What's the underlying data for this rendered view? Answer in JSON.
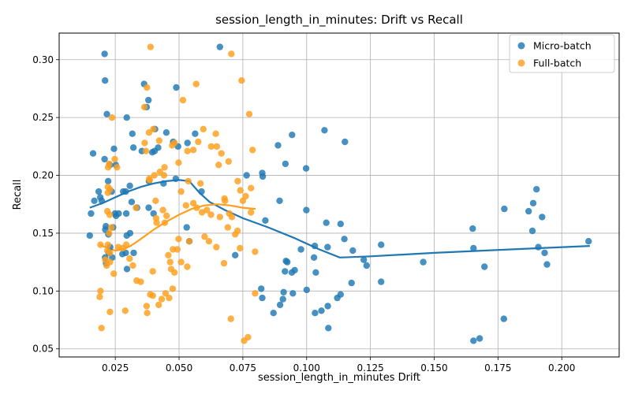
{
  "chart_data": {
    "type": "scatter",
    "title": "session_length_in_minutes: Drift vs Recall",
    "xlabel": "session_length_in_minutes Drift",
    "ylabel": "Recall",
    "xlim": [
      0.003,
      0.2225
    ],
    "ylim": [
      0.043,
      0.323
    ],
    "xticks": [
      0.025,
      0.05,
      0.075,
      0.1,
      0.125,
      0.15,
      0.175,
      0.2
    ],
    "xtick_labels": [
      "0.025",
      "0.050",
      "0.075",
      "0.100",
      "0.125",
      "0.150",
      "0.175",
      "0.200"
    ],
    "yticks": [
      0.05,
      0.1,
      0.15,
      0.2,
      0.25,
      0.3
    ],
    "ytick_labels": [
      "0.05",
      "0.10",
      "0.15",
      "0.20",
      "0.25",
      "0.30"
    ],
    "grid": true,
    "legend_position": "upper right",
    "series": [
      {
        "name": "Micro-batch",
        "color": "#1f77b4",
        "points": [
          [
            0.0208,
            0.305
          ],
          [
            0.021,
            0.282
          ],
          [
            0.0217,
            0.253
          ],
          [
            0.0295,
            0.25
          ],
          [
            0.0363,
            0.279
          ],
          [
            0.038,
            0.265
          ],
          [
            0.0373,
            0.259
          ],
          [
            0.0489,
            0.276
          ],
          [
            0.066,
            0.311
          ],
          [
            0.045,
            0.237
          ],
          [
            0.0563,
            0.236
          ],
          [
            0.0317,
            0.236
          ],
          [
            0.0245,
            0.223
          ],
          [
            0.0321,
            0.224
          ],
          [
            0.0163,
            0.219
          ],
          [
            0.0208,
            0.214
          ],
          [
            0.0252,
            0.209
          ],
          [
            0.0229,
            0.209
          ],
          [
            0.0354,
            0.221
          ],
          [
            0.0404,
            0.221
          ],
          [
            0.0418,
            0.224
          ],
          [
            0.0477,
            0.229
          ],
          [
            0.0496,
            0.225
          ],
          [
            0.0533,
            0.228
          ],
          [
            0.0406,
            0.24
          ],
          [
            0.0395,
            0.22
          ],
          [
            0.0222,
            0.195
          ],
          [
            0.0185,
            0.186
          ],
          [
            0.0236,
            0.186
          ],
          [
            0.0291,
            0.186
          ],
          [
            0.0281,
            0.186
          ],
          [
            0.0307,
            0.191
          ],
          [
            0.0191,
            0.181
          ],
          [
            0.0168,
            0.178
          ],
          [
            0.0197,
            0.178
          ],
          [
            0.0382,
            0.195
          ],
          [
            0.0439,
            0.193
          ],
          [
            0.0487,
            0.197
          ],
          [
            0.0249,
            0.167
          ],
          [
            0.0263,
            0.167
          ],
          [
            0.0293,
            0.167
          ],
          [
            0.0314,
            0.177
          ],
          [
            0.0335,
            0.172
          ],
          [
            0.0381,
            0.172
          ],
          [
            0.04,
            0.167
          ],
          [
            0.0213,
            0.156
          ],
          [
            0.0211,
            0.153
          ],
          [
            0.0241,
            0.155
          ],
          [
            0.0253,
            0.165
          ],
          [
            0.023,
            0.138
          ],
          [
            0.0224,
            0.133
          ],
          [
            0.021,
            0.129
          ],
          [
            0.0214,
            0.124
          ],
          [
            0.0278,
            0.132
          ],
          [
            0.0291,
            0.133
          ],
          [
            0.0295,
            0.148
          ],
          [
            0.0308,
            0.15
          ],
          [
            0.0322,
            0.133
          ],
          [
            0.0296,
            0.119
          ],
          [
            0.0238,
            0.129
          ],
          [
            0.0223,
            0.149
          ],
          [
            0.015,
            0.148
          ],
          [
            0.0155,
            0.167
          ],
          [
            0.053,
            0.155
          ],
          [
            0.054,
            0.143
          ],
          [
            0.0588,
            0.186
          ],
          [
            0.072,
            0.131
          ],
          [
            0.0765,
            0.2
          ],
          [
            0.0826,
            0.202
          ],
          [
            0.0828,
            0.199
          ],
          [
            0.0838,
            0.161
          ],
          [
            0.0888,
            0.226
          ],
          [
            0.0917,
            0.21
          ],
          [
            0.0943,
            0.235
          ],
          [
            0.0894,
            0.178
          ],
          [
            0.0998,
            0.206
          ],
          [
            0.0999,
            0.17
          ],
          [
            0.0919,
            0.126
          ],
          [
            0.0924,
            0.125
          ],
          [
            0.0915,
            0.117
          ],
          [
            0.0953,
            0.118
          ],
          [
            0.0942,
            0.116
          ],
          [
            0.0946,
            0.098
          ],
          [
            0.0978,
            0.136
          ],
          [
            0.1032,
            0.139
          ],
          [
            0.1029,
            0.129
          ],
          [
            0.1036,
            0.116
          ],
          [
            0.1,
            0.101
          ],
          [
            0.091,
            0.099
          ],
          [
            0.0907,
            0.093
          ],
          [
            0.0896,
            0.088
          ],
          [
            0.087,
            0.081
          ],
          [
            0.0822,
            0.102
          ],
          [
            0.0826,
            0.094
          ],
          [
            0.107,
            0.239
          ],
          [
            0.1077,
            0.159
          ],
          [
            0.1082,
            0.138
          ],
          [
            0.1133,
            0.158
          ],
          [
            0.115,
            0.229
          ],
          [
            0.1148,
            0.145
          ],
          [
            0.1181,
            0.135
          ],
          [
            0.1033,
            0.081
          ],
          [
            0.1058,
            0.083
          ],
          [
            0.1083,
            0.087
          ],
          [
            0.1085,
            0.068
          ],
          [
            0.112,
            0.094
          ],
          [
            0.1133,
            0.097
          ],
          [
            0.1176,
            0.107
          ],
          [
            0.1224,
            0.127
          ],
          [
            0.1235,
            0.122
          ],
          [
            0.1292,
            0.14
          ],
          [
            0.1292,
            0.108
          ],
          [
            0.1457,
            0.125
          ],
          [
            0.1651,
            0.154
          ],
          [
            0.1654,
            0.137
          ],
          [
            0.1654,
            0.057
          ],
          [
            0.1678,
            0.059
          ],
          [
            0.1697,
            0.121
          ],
          [
            0.1775,
            0.171
          ],
          [
            0.1773,
            0.076
          ],
          [
            0.187,
            0.169
          ],
          [
            0.1885,
            0.152
          ],
          [
            0.1888,
            0.176
          ],
          [
            0.1901,
            0.188
          ],
          [
            0.1908,
            0.138
          ],
          [
            0.1923,
            0.164
          ],
          [
            0.1933,
            0.133
          ],
          [
            0.1942,
            0.123
          ],
          [
            0.2105,
            0.143
          ]
        ],
        "trend": [
          [
            0.015,
            0.172
          ],
          [
            0.02,
            0.176
          ],
          [
            0.025,
            0.181
          ],
          [
            0.03,
            0.186
          ],
          [
            0.035,
            0.19
          ],
          [
            0.04,
            0.193
          ],
          [
            0.045,
            0.195
          ],
          [
            0.05,
            0.196
          ],
          [
            0.054,
            0.195
          ],
          [
            0.058,
            0.185
          ],
          [
            0.062,
            0.177
          ],
          [
            0.068,
            0.17
          ],
          [
            0.075,
            0.163
          ],
          [
            0.085,
            0.155
          ],
          [
            0.095,
            0.146
          ],
          [
            0.105,
            0.136
          ],
          [
            0.113,
            0.129
          ],
          [
            0.125,
            0.13
          ],
          [
            0.15,
            0.133
          ],
          [
            0.18,
            0.136
          ],
          [
            0.211,
            0.139
          ]
        ]
      },
      {
        "name": "Full-batch",
        "color": "#ff9f1c",
        "points": [
          [
            0.0388,
            0.311
          ],
          [
            0.0705,
            0.305
          ],
          [
            0.0374,
            0.276
          ],
          [
            0.0567,
            0.279
          ],
          [
            0.0745,
            0.282
          ],
          [
            0.0775,
            0.253
          ],
          [
            0.0364,
            0.259
          ],
          [
            0.0237,
            0.25
          ],
          [
            0.0515,
            0.265
          ],
          [
            0.0382,
            0.237
          ],
          [
            0.0399,
            0.24
          ],
          [
            0.0595,
            0.24
          ],
          [
            0.0644,
            0.236
          ],
          [
            0.0575,
            0.229
          ],
          [
            0.0422,
            0.23
          ],
          [
            0.0365,
            0.228
          ],
          [
            0.0482,
            0.228
          ],
          [
            0.0473,
            0.226
          ],
          [
            0.037,
            0.221
          ],
          [
            0.0533,
            0.221
          ],
          [
            0.0556,
            0.222
          ],
          [
            0.0626,
            0.225
          ],
          [
            0.0648,
            0.225
          ],
          [
            0.0666,
            0.219
          ],
          [
            0.0788,
            0.222
          ],
          [
            0.0248,
            0.214
          ],
          [
            0.0226,
            0.21
          ],
          [
            0.0222,
            0.207
          ],
          [
            0.0257,
            0.207
          ],
          [
            0.0443,
            0.207
          ],
          [
            0.0403,
            0.2
          ],
          [
            0.0425,
            0.203
          ],
          [
            0.0441,
            0.2
          ],
          [
            0.0498,
            0.211
          ],
          [
            0.0655,
            0.209
          ],
          [
            0.0694,
            0.212
          ],
          [
            0.0383,
            0.197
          ],
          [
            0.0385,
            0.196
          ],
          [
            0.0536,
            0.195
          ],
          [
            0.0584,
            0.193
          ],
          [
            0.073,
            0.195
          ],
          [
            0.0221,
            0.19
          ],
          [
            0.0221,
            0.185
          ],
          [
            0.0229,
            0.188
          ],
          [
            0.0508,
            0.186
          ],
          [
            0.074,
            0.187
          ],
          [
            0.0782,
            0.189
          ],
          [
            0.0761,
            0.182
          ],
          [
            0.075,
            0.178
          ],
          [
            0.0408,
            0.178
          ],
          [
            0.0678,
            0.18
          ],
          [
            0.068,
            0.178
          ],
          [
            0.0609,
            0.17
          ],
          [
            0.0569,
            0.172
          ],
          [
            0.0556,
            0.176
          ],
          [
            0.059,
            0.168
          ],
          [
            0.0625,
            0.166
          ],
          [
            0.066,
            0.164
          ],
          [
            0.0697,
            0.167
          ],
          [
            0.0707,
            0.164
          ],
          [
            0.0729,
            0.152
          ],
          [
            0.072,
            0.149
          ],
          [
            0.0691,
            0.155
          ],
          [
            0.06,
            0.147
          ],
          [
            0.0617,
            0.143
          ],
          [
            0.0646,
            0.138
          ],
          [
            0.0739,
            0.137
          ],
          [
            0.0798,
            0.134
          ],
          [
            0.0782,
            0.168
          ],
          [
            0.0331,
            0.172
          ],
          [
            0.041,
            0.163
          ],
          [
            0.0412,
            0.159
          ],
          [
            0.0437,
            0.17
          ],
          [
            0.0451,
            0.165
          ],
          [
            0.0444,
            0.159
          ],
          [
            0.0527,
            0.174
          ],
          [
            0.054,
            0.143
          ],
          [
            0.0498,
            0.145
          ],
          [
            0.0476,
            0.136
          ],
          [
            0.0493,
            0.136
          ],
          [
            0.0508,
            0.125
          ],
          [
            0.0532,
            0.121
          ],
          [
            0.0458,
            0.131
          ],
          [
            0.0465,
            0.125
          ],
          [
            0.0469,
            0.119
          ],
          [
            0.0482,
            0.116
          ],
          [
            0.0447,
            0.098
          ],
          [
            0.0461,
            0.094
          ],
          [
            0.0475,
            0.102
          ],
          [
            0.0432,
            0.093
          ],
          [
            0.042,
            0.088
          ],
          [
            0.0397,
            0.096
          ],
          [
            0.0387,
            0.097
          ],
          [
            0.0373,
            0.087
          ],
          [
            0.0375,
            0.081
          ],
          [
            0.0397,
            0.117
          ],
          [
            0.0334,
            0.109
          ],
          [
            0.035,
            0.108
          ],
          [
            0.0306,
            0.128
          ],
          [
            0.0319,
            0.122
          ],
          [
            0.0289,
            0.083
          ],
          [
            0.0229,
            0.082
          ],
          [
            0.0192,
            0.1
          ],
          [
            0.0189,
            0.095
          ],
          [
            0.0196,
            0.068
          ],
          [
            0.0192,
            0.14
          ],
          [
            0.0221,
            0.14
          ],
          [
            0.0219,
            0.135
          ],
          [
            0.0229,
            0.133
          ],
          [
            0.0211,
            0.127
          ],
          [
            0.0216,
            0.122
          ],
          [
            0.0229,
            0.125
          ],
          [
            0.0244,
            0.115
          ],
          [
            0.0235,
            0.155
          ],
          [
            0.0226,
            0.15
          ],
          [
            0.0219,
            0.169
          ],
          [
            0.0228,
            0.166
          ],
          [
            0.0262,
            0.138
          ],
          [
            0.0279,
            0.137
          ],
          [
            0.0293,
            0.14
          ],
          [
            0.0676,
            0.124
          ],
          [
            0.0703,
            0.076
          ],
          [
            0.0755,
            0.057
          ],
          [
            0.077,
            0.06
          ],
          [
            0.0798,
            0.098
          ]
        ],
        "trend": [
          [
            0.019,
            0.14
          ],
          [
            0.022,
            0.137
          ],
          [
            0.025,
            0.135
          ],
          [
            0.028,
            0.136
          ],
          [
            0.031,
            0.139
          ],
          [
            0.035,
            0.145
          ],
          [
            0.04,
            0.153
          ],
          [
            0.045,
            0.16
          ],
          [
            0.05,
            0.166
          ],
          [
            0.055,
            0.171
          ],
          [
            0.06,
            0.174
          ],
          [
            0.065,
            0.175
          ],
          [
            0.07,
            0.174
          ],
          [
            0.075,
            0.172
          ],
          [
            0.08,
            0.171
          ]
        ]
      }
    ]
  }
}
